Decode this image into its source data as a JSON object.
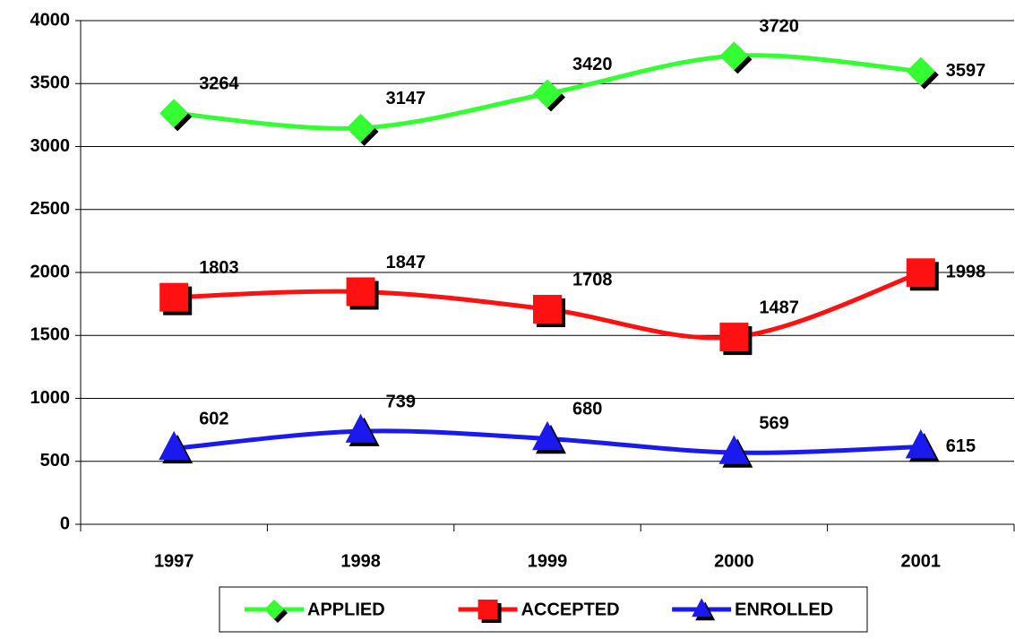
{
  "chart_data": {
    "type": "line",
    "categories": [
      "1997",
      "1998",
      "1999",
      "2000",
      "2001"
    ],
    "series": [
      {
        "name": "APPLIED",
        "color": "#33ff33",
        "marker": "diamond",
        "values": [
          3264,
          3147,
          3420,
          3720,
          3597
        ]
      },
      {
        "name": "ACCEPTED",
        "color": "#ff1111",
        "marker": "square",
        "values": [
          1803,
          1847,
          1708,
          1487,
          1998
        ]
      },
      {
        "name": "ENROLLED",
        "color": "#1a1aee",
        "marker": "triangle",
        "values": [
          602,
          739,
          680,
          569,
          615
        ]
      }
    ],
    "ylim": [
      0,
      4000
    ],
    "yticks": [
      0,
      500,
      1000,
      1500,
      2000,
      2500,
      3000,
      3500,
      4000
    ],
    "grid": true,
    "smooth": true,
    "legend": "bottom"
  }
}
